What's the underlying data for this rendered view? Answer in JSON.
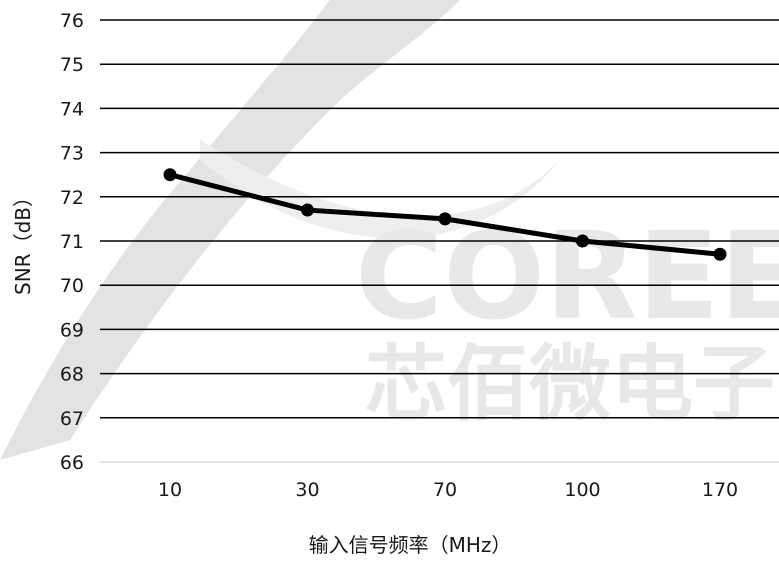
{
  "watermark": {
    "latin": "COREE",
    "chinese": "芯佰微电子"
  },
  "chart_data": {
    "type": "line",
    "title": "",
    "xlabel": "输入信号频率（MHz）",
    "ylabel": "SNR（dB）",
    "categories": [
      "10",
      "30",
      "70",
      "100",
      "170"
    ],
    "series": [
      {
        "values": [
          72.5,
          71.7,
          71.5,
          71.0,
          70.7
        ]
      }
    ],
    "ylim": [
      66,
      76
    ],
    "yticks": [
      "66",
      "67",
      "68",
      "69",
      "70",
      "71",
      "72",
      "73",
      "74",
      "75",
      "76"
    ],
    "grid": true,
    "legend": "none",
    "colors": {
      "line": "#000000",
      "grid": "#000000",
      "watermark": "#e6e6e6"
    }
  }
}
